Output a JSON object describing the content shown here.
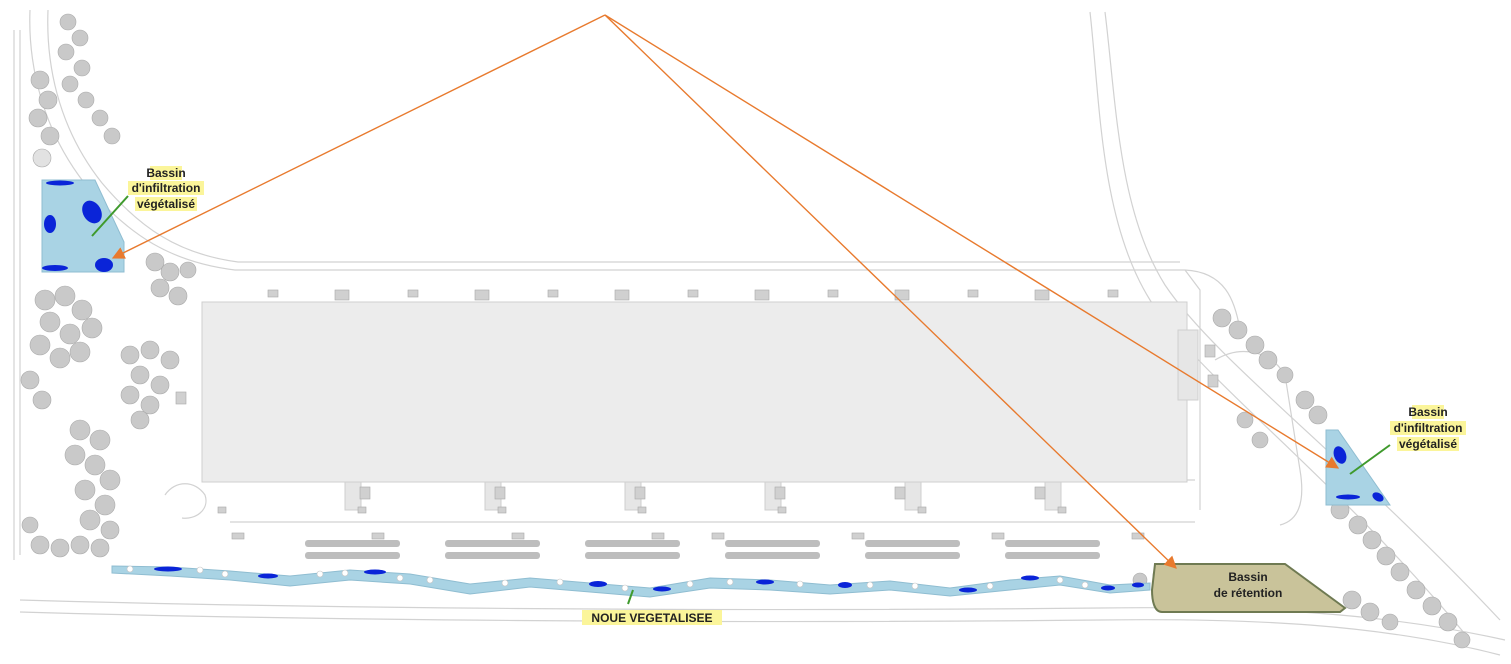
{
  "labels": {
    "basin_left": [
      "Bassin",
      "d'infiltration",
      "végétalisé"
    ],
    "basin_right": [
      "Bassin",
      "d'infiltration",
      "végétalisé"
    ],
    "retention": [
      "Bassin",
      "de rétention"
    ],
    "noue": "NOUE VEGETALISEE"
  },
  "colors": {
    "water_light": "#a9d3e4",
    "water_dark": "#0a24d8",
    "retention_fill": "#c9c39a",
    "retention_stroke": "#6f7a52",
    "label_highlight": "#fbf59a",
    "leader_green": "#3f9a2d",
    "arrow_orange": "#e87a2e",
    "building": "#ececec",
    "tree": "#c9c9c9",
    "road": "#cfcfcf"
  },
  "icons": [
    "tree-cluster",
    "parking-marker",
    "arrow-head"
  ]
}
